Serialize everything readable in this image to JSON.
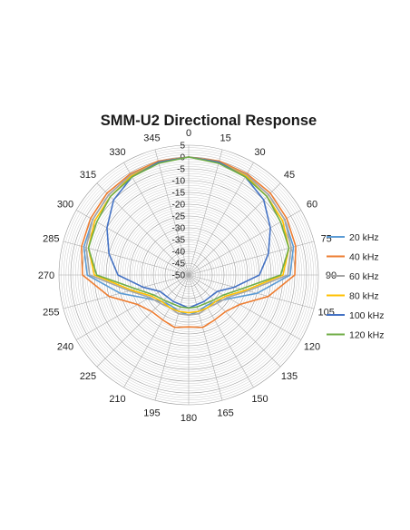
{
  "chart_data": {
    "type": "radar",
    "title": "SMM-U2 Directional Response",
    "angle_labels": [
      "0",
      "15",
      "30",
      "45",
      "60",
      "75",
      "90",
      "105",
      "120",
      "135",
      "150",
      "165",
      "180",
      "195",
      "210",
      "225",
      "240",
      "255",
      "270",
      "285",
      "300",
      "315",
      "330",
      "345"
    ],
    "radial_ticks": [
      "5",
      "0",
      "-5",
      "-10",
      "-15",
      "-20",
      "-25",
      "-30",
      "-35",
      "-40",
      "-45",
      "-50"
    ],
    "rlim": [
      -50,
      5
    ],
    "legend_position": "right",
    "series": [
      {
        "name": "20 kHz",
        "color": "#5b9bd5",
        "values": [
          0,
          -0.5,
          -1,
          -2,
          -3,
          -4,
          -7,
          -20,
          -30,
          -34,
          -35,
          -34,
          -33,
          -34,
          -35,
          -34,
          -30,
          -20,
          -7,
          -4,
          -3,
          -2,
          -1,
          -0.5
        ]
      },
      {
        "name": "40 kHz",
        "color": "#ed7d31",
        "values": [
          0,
          0,
          -0.5,
          -1,
          -2,
          -3,
          -5,
          -15,
          -25,
          -28,
          -28,
          -27,
          -28,
          -27,
          -28,
          -28,
          -25,
          -15,
          -5,
          -3,
          -2,
          -1,
          -0.5,
          0
        ]
      },
      {
        "name": "60 kHz",
        "color": "#a5a5a5",
        "values": [
          0,
          -0.5,
          -1,
          -2,
          -3,
          -5,
          -8,
          -24,
          -31,
          -33,
          -34,
          -33,
          -33,
          -33,
          -34,
          -33,
          -31,
          -24,
          -8,
          -5,
          -3,
          -2,
          -1,
          -0.5
        ]
      },
      {
        "name": "80 kHz",
        "color": "#ffc000",
        "values": [
          0,
          -0.5,
          -1.5,
          -3,
          -4,
          -6,
          -10,
          -25,
          -32,
          -34,
          -34,
          -34,
          -34,
          -34,
          -34,
          -34,
          -32,
          -25,
          -10,
          -6,
          -4,
          -3,
          -1.5,
          -0.5
        ]
      },
      {
        "name": "100 kHz",
        "color": "#4472c4",
        "values": [
          0,
          -0.5,
          -2,
          -5,
          -10,
          -15,
          -20,
          -30,
          -36,
          -37,
          -37,
          -37,
          -36,
          -37,
          -37,
          -37,
          -36,
          -30,
          -20,
          -15,
          -10,
          -5,
          -2,
          -0.5
        ]
      },
      {
        "name": "120 kHz",
        "color": "#70ad47",
        "values": [
          0,
          -1,
          -2,
          -3,
          -5,
          -6,
          -11,
          -27,
          -33,
          -35,
          -36,
          -36,
          -36,
          -36,
          -36,
          -35,
          -33,
          -27,
          -11,
          -6,
          -5,
          -3,
          -2,
          -1
        ]
      }
    ]
  }
}
